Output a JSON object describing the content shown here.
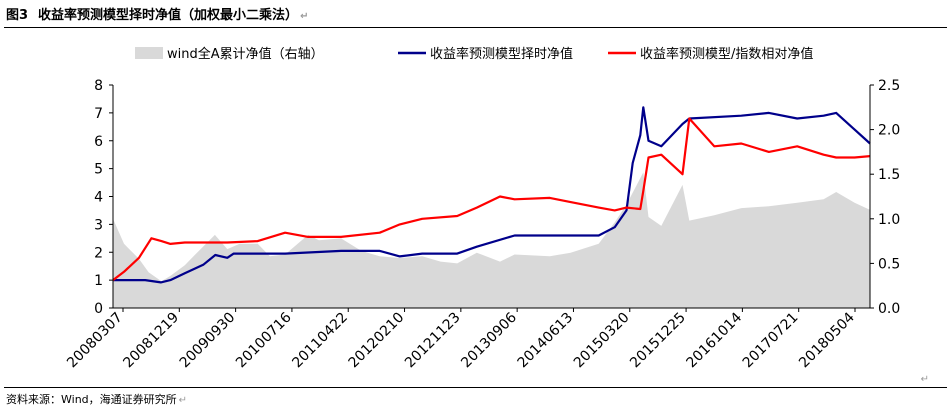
{
  "figure": {
    "number": "图3",
    "title": "收益率预测模型择时净值（加权最小二乘法）",
    "source": "资料来源：Wind，海通证券研究所",
    "para_mark": "↵"
  },
  "colors": {
    "area": "#d9d9d9",
    "timing": "#00008b",
    "relative": "#ff0000"
  },
  "chart_data": {
    "type": "line",
    "title": "",
    "xlabel": "",
    "ylabel": "",
    "x_ticks": [
      "20080307",
      "20081219",
      "20090930",
      "20100716",
      "20110422",
      "20120210",
      "20121123",
      "20130906",
      "20140613",
      "20150320",
      "20151225",
      "20161014",
      "20170721",
      "20180504"
    ],
    "y_left": {
      "lim": [
        0,
        8
      ],
      "ticks": [
        "0",
        "1",
        "2",
        "3",
        "4",
        "5",
        "6",
        "7",
        "8"
      ]
    },
    "y_right": {
      "lim": [
        0,
        2.5
      ],
      "ticks": [
        "0.0",
        "0.5",
        "1.0",
        "1.5",
        "2.0",
        "2.5"
      ]
    },
    "grid": false,
    "legend_position": "top",
    "series": [
      {
        "name": "wind全A累计净值（右轴）",
        "type": "area",
        "axis": "right",
        "color": "#d9d9d9",
        "points": [
          [
            "20080307",
            1.0
          ],
          [
            "20080501",
            0.72
          ],
          [
            "20080715",
            0.55
          ],
          [
            "20080901",
            0.4
          ],
          [
            "20081104",
            0.3
          ],
          [
            "20081219",
            0.36
          ],
          [
            "20090301",
            0.48
          ],
          [
            "20090501",
            0.62
          ],
          [
            "20090730",
            0.82
          ],
          [
            "20090930",
            0.66
          ],
          [
            "20091201",
            0.72
          ],
          [
            "20100301",
            0.72
          ],
          [
            "20100501",
            0.58
          ],
          [
            "20100716",
            0.6
          ],
          [
            "20101108",
            0.82
          ],
          [
            "20110101",
            0.76
          ],
          [
            "20110422",
            0.78
          ],
          [
            "20110801",
            0.64
          ],
          [
            "20111101",
            0.58
          ],
          [
            "20120210",
            0.56
          ],
          [
            "20120601",
            0.58
          ],
          [
            "20120901",
            0.52
          ],
          [
            "20121123",
            0.5
          ],
          [
            "20130301",
            0.62
          ],
          [
            "20130625",
            0.52
          ],
          [
            "20130906",
            0.6
          ],
          [
            "20140301",
            0.58
          ],
          [
            "20140613",
            0.62
          ],
          [
            "20141101",
            0.72
          ],
          [
            "20150120",
            0.96
          ],
          [
            "20150320",
            1.16
          ],
          [
            "20150612",
            1.52
          ],
          [
            "20150708",
            1.02
          ],
          [
            "20150910",
            0.92
          ],
          [
            "20151225",
            1.38
          ],
          [
            "20160128",
            0.98
          ],
          [
            "20160601",
            1.04
          ],
          [
            "20161014",
            1.12
          ],
          [
            "20170301",
            1.14
          ],
          [
            "20170721",
            1.18
          ],
          [
            "20171130",
            1.22
          ],
          [
            "20180201",
            1.3
          ],
          [
            "20180504",
            1.18
          ],
          [
            "20180720",
            1.1
          ]
        ]
      },
      {
        "name": "收益率预测模型择时净值",
        "type": "line",
        "axis": "left",
        "color": "#00008b",
        "points": [
          [
            "20080307",
            1.0
          ],
          [
            "20080815",
            1.0
          ],
          [
            "20081101",
            0.92
          ],
          [
            "20081219",
            1.0
          ],
          [
            "20090301",
            1.25
          ],
          [
            "20090601",
            1.55
          ],
          [
            "20090801",
            1.9
          ],
          [
            "20090930",
            1.8
          ],
          [
            "20091101",
            1.95
          ],
          [
            "20100301",
            1.95
          ],
          [
            "20100716",
            1.95
          ],
          [
            "20110422",
            2.05
          ],
          [
            "20111101",
            2.05
          ],
          [
            "20120210",
            1.85
          ],
          [
            "20120601",
            1.95
          ],
          [
            "20121123",
            1.95
          ],
          [
            "20130301",
            2.2
          ],
          [
            "20130906",
            2.6
          ],
          [
            "20140613",
            2.6
          ],
          [
            "20141101",
            2.6
          ],
          [
            "20150120",
            2.9
          ],
          [
            "20150320",
            3.5
          ],
          [
            "20150420",
            5.2
          ],
          [
            "20150528",
            6.2
          ],
          [
            "20150612",
            7.2
          ],
          [
            "20150708",
            6.0
          ],
          [
            "20150910",
            5.8
          ],
          [
            "20151225",
            6.6
          ],
          [
            "20160128",
            6.8
          ],
          [
            "20161014",
            6.9
          ],
          [
            "20170301",
            7.0
          ],
          [
            "20170721",
            6.8
          ],
          [
            "20171130",
            6.9
          ],
          [
            "20180201",
            7.0
          ],
          [
            "20180504",
            6.4
          ],
          [
            "20180720",
            5.9
          ]
        ]
      },
      {
        "name": "收益率预测模型/指数相对净值",
        "type": "line",
        "axis": "left",
        "color": "#ff0000",
        "points": [
          [
            "20080307",
            1.0
          ],
          [
            "20080501",
            1.3
          ],
          [
            "20080715",
            1.8
          ],
          [
            "20080915",
            2.5
          ],
          [
            "20081104",
            2.4
          ],
          [
            "20081219",
            2.3
          ],
          [
            "20090301",
            2.35
          ],
          [
            "20090930",
            2.35
          ],
          [
            "20100301",
            2.4
          ],
          [
            "20100716",
            2.7
          ],
          [
            "20101108",
            2.55
          ],
          [
            "20110422",
            2.55
          ],
          [
            "20111101",
            2.7
          ],
          [
            "20120210",
            3.0
          ],
          [
            "20120601",
            3.2
          ],
          [
            "20121123",
            3.3
          ],
          [
            "20130301",
            3.6
          ],
          [
            "20130625",
            4.0
          ],
          [
            "20130906",
            3.9
          ],
          [
            "20140301",
            3.95
          ],
          [
            "20140613",
            3.8
          ],
          [
            "20141101",
            3.6
          ],
          [
            "20150120",
            3.5
          ],
          [
            "20150320",
            3.6
          ],
          [
            "20150528",
            3.55
          ],
          [
            "20150612",
            4.2
          ],
          [
            "20150708",
            5.4
          ],
          [
            "20150910",
            5.5
          ],
          [
            "20151225",
            4.8
          ],
          [
            "20160128",
            6.8
          ],
          [
            "20160601",
            5.8
          ],
          [
            "20161014",
            5.9
          ],
          [
            "20170301",
            5.6
          ],
          [
            "20170721",
            5.8
          ],
          [
            "20171130",
            5.5
          ],
          [
            "20180201",
            5.4
          ],
          [
            "20180504",
            5.4
          ],
          [
            "20180720",
            5.45
          ]
        ]
      }
    ]
  }
}
